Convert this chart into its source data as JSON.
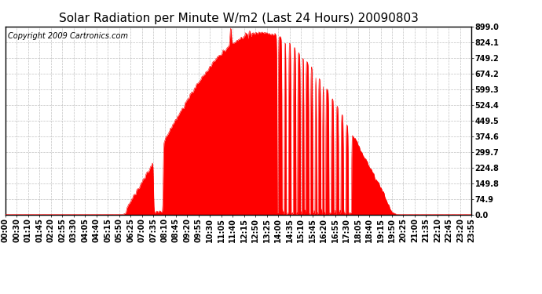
{
  "title": "Solar Radiation per Minute W/m2 (Last 24 Hours) 20090803",
  "copyright": "Copyright 2009 Cartronics.com",
  "y_ticks": [
    0.0,
    74.9,
    149.8,
    224.8,
    299.7,
    374.6,
    449.5,
    524.4,
    599.3,
    674.2,
    749.2,
    824.1,
    899.0
  ],
  "y_max": 899.0,
  "y_min": 0.0,
  "background_color": "#ffffff",
  "fill_color": "#ff0000",
  "line_color": "#ff0000",
  "dashed_line_color": "#ff0000",
  "grid_color": "#bbbbbb",
  "title_fontsize": 11,
  "copyright_fontsize": 7,
  "tick_fontsize": 7,
  "x_tick_labels": [
    "00:00",
    "00:30",
    "01:10",
    "01:45",
    "02:20",
    "02:55",
    "03:30",
    "04:05",
    "04:40",
    "05:15",
    "05:50",
    "06:25",
    "07:00",
    "07:35",
    "08:10",
    "08:45",
    "09:20",
    "09:55",
    "10:30",
    "11:05",
    "11:40",
    "12:15",
    "12:50",
    "13:25",
    "14:00",
    "14:35",
    "15:10",
    "15:45",
    "16:20",
    "16:55",
    "17:30",
    "18:05",
    "18:40",
    "19:15",
    "19:50",
    "20:25",
    "21:00",
    "21:35",
    "22:10",
    "22:45",
    "23:20",
    "23:55"
  ]
}
